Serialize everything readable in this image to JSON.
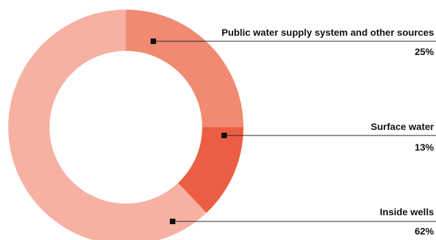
{
  "chart_data": {
    "type": "pie",
    "donut": true,
    "title": "",
    "categories": [
      "Public water supply system and other sources",
      "Surface water",
      "Inside wells"
    ],
    "values": [
      25,
      13,
      62
    ],
    "value_labels": [
      "25%",
      "13%",
      "62%"
    ],
    "colors": [
      "#f08a72",
      "#ec5e43",
      "#f6b1a3"
    ],
    "start_angle_deg": 0,
    "direction": "clockwise",
    "legend": "none"
  }
}
